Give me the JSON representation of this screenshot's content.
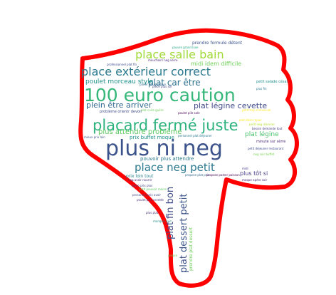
{
  "shape": {
    "stroke_color": "#ff0000",
    "fill_color": "#ffffff"
  },
  "words": [
    {
      "text": "plus ni neg",
      "color": "#3b528b"
    },
    {
      "text": "100 euro caution",
      "color": "#35b779"
    },
    {
      "text": "placard fermé juste",
      "color": "#2db27d"
    },
    {
      "text": "place extérieur correct",
      "color": "#2a788e"
    },
    {
      "text": "place salle bain",
      "color": "#a0da39"
    },
    {
      "text": "place neg petit",
      "color": "#2a788e"
    },
    {
      "text": "plat dessert petit",
      "color": "#3b528b"
    },
    {
      "text": "plat fin bon",
      "color": "#3e4a89"
    },
    {
      "text": "plat car être",
      "color": "#2c728e"
    },
    {
      "text": "plein être arriver",
      "color": "#31688e"
    },
    {
      "text": "plat légine cevette",
      "color": "#3e4989"
    },
    {
      "text": "plus attendre problème",
      "color": "#5ec962"
    },
    {
      "text": "poulet morceau style",
      "color": "#21918c"
    },
    {
      "text": "plat légine",
      "color": "#4ac16d"
    },
    {
      "text": "midi idem difficile",
      "color": "#6ece58"
    },
    {
      "text": "pouvoir plus attendre",
      "color": "#2a788e"
    },
    {
      "text": "plus tôt si",
      "color": "#443a83"
    },
    {
      "text": "prix buffet moque",
      "color": "#21918c"
    },
    {
      "text": "prix loin tout",
      "color": "#26828e"
    },
    {
      "text": "prendre plat dessert",
      "color": "#6ece58"
    },
    {
      "text": "prendre formule détent",
      "color": "#3b528b"
    },
    {
      "text": "problème orientr devoir",
      "color": "#3e4a89"
    },
    {
      "text": "minute sur sèrre",
      "color": "#482878"
    },
    {
      "text": "petit salade césar",
      "color": "#21918c"
    },
    {
      "text": "professionnel plat fin",
      "color": "#3e4989"
    },
    {
      "text": "mouchoirs neg verre",
      "color": "#482878"
    },
    {
      "text": "pièce plus sol",
      "color": "#414487"
    },
    {
      "text": "plat cuire guère",
      "color": "#6ece58"
    },
    {
      "text": "petit trop minuscule",
      "color": "#fde725"
    },
    {
      "text": "poulet pile sale",
      "color": "#440154"
    },
    {
      "text": "pauvre grand luxe",
      "color": "#22a884"
    },
    {
      "text": "propose plat prix",
      "color": "#31688e"
    },
    {
      "text": "mieux prix loin",
      "color": "#3b528b"
    },
    {
      "text": "neg avoir nourrir",
      "color": "#472d7b"
    },
    {
      "text": "petit déjeuner restaurant",
      "color": "#3e4989"
    },
    {
      "text": "personnel plat déjeuner",
      "color": "#2a788e"
    },
    {
      "text": "propose poster poisson",
      "color": "#440154"
    },
    {
      "text": "moque apéro soir",
      "color": "#482878"
    },
    {
      "text": "neg soir buffet",
      "color": "#7ad151"
    },
    {
      "text": "petit pouvoir moins",
      "color": "#5ec962"
    },
    {
      "text": "pièce prix plus",
      "color": "#414487"
    },
    {
      "text": "poulet prix cevette",
      "color": "#46327e"
    },
    {
      "text": "personnel prix avoir",
      "color": "#3e4989"
    },
    {
      "text": "besoin demande tout",
      "color": "#443a83"
    },
    {
      "text": "petit neg réserver",
      "color": "#b5de2b"
    },
    {
      "text": "plat idem repas",
      "color": "#fde725"
    },
    {
      "text": "parler bouger pain",
      "color": "#31688e"
    },
    {
      "text": "plus plat",
      "color": "#472d7b"
    },
    {
      "text": "manque fruit",
      "color": "#21918c"
    },
    {
      "text": "propre",
      "color": "#6ece58"
    },
    {
      "text": "plus fin",
      "color": "#2a788e"
    },
    {
      "text": "midi",
      "color": "#433e85"
    }
  ]
}
